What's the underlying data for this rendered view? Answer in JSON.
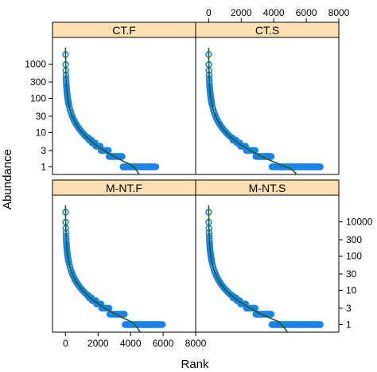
{
  "chart_data": {
    "type": "scatter",
    "xlabel": "Rank",
    "ylabel": "Abundance",
    "x_ticks": [
      0,
      2000,
      4000,
      6000,
      8000
    ],
    "y_ticks_left": [
      "1",
      "3",
      "10",
      "30",
      "100",
      "300",
      "1000"
    ],
    "y_ticks_right": [
      "1",
      "3",
      "10",
      "30",
      "100",
      "300",
      "10000"
    ],
    "y_scale": "log",
    "xlim": [
      -800,
      8000
    ],
    "ylim": [
      0.6,
      6000
    ],
    "colors": {
      "strip": "#ffe0b2",
      "points": "#1a83e8",
      "fit": "#1f5d1f"
    },
    "panels": [
      {
        "name": "CT.F",
        "n_species": 5600,
        "fit_end_rank": 5450,
        "max_abundance": 1900
      },
      {
        "name": "CT.S",
        "n_species": 6900,
        "fit_end_rank": 6700,
        "max_abundance": 1900
      },
      {
        "name": "M-NT.F",
        "n_species": 6000,
        "fit_end_rank": 5450,
        "max_abundance": 1900
      },
      {
        "name": "M-NT.S",
        "n_species": 6900,
        "fit_end_rank": 5650,
        "max_abundance": 1900
      }
    ]
  }
}
